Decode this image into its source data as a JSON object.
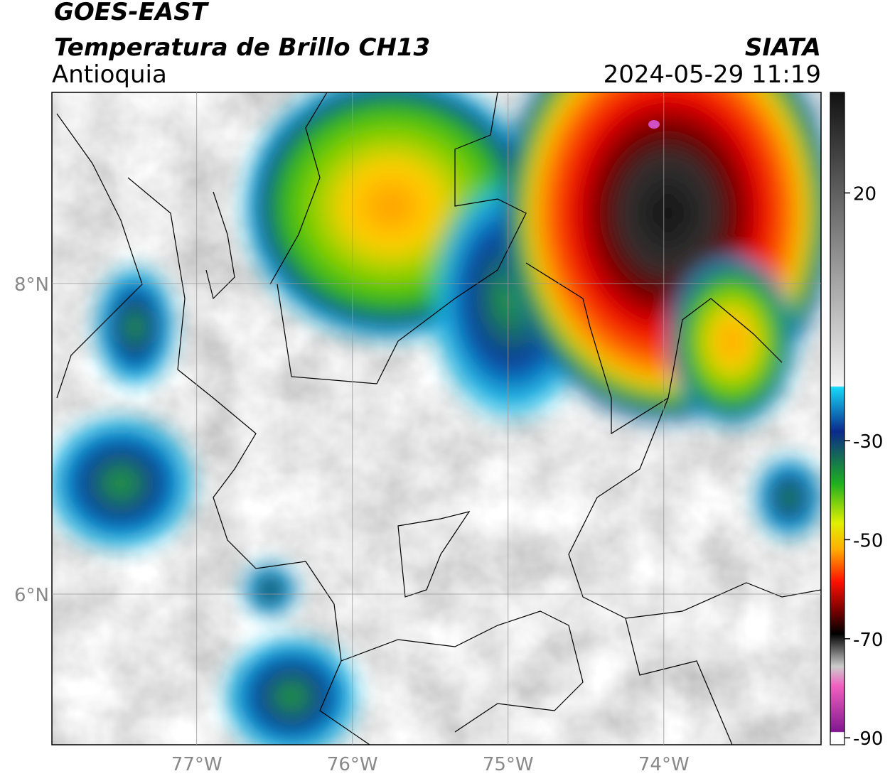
{
  "header": {
    "satellite": "GOES-EAST",
    "product": "Temperatura de Brillo CH13",
    "region": "Antioquia",
    "source": "SIATA",
    "datetime": "2024-05-29 11:19"
  },
  "map": {
    "xlim": [
      -77.93,
      -72.99
    ],
    "ylim": [
      5.03,
      9.23
    ],
    "xticks": [
      {
        "value": -77,
        "label": "77°W"
      },
      {
        "value": -76,
        "label": "76°W"
      },
      {
        "value": -75,
        "label": "75°W"
      },
      {
        "value": -74,
        "label": "74°W"
      }
    ],
    "yticks": [
      {
        "value": 8,
        "label": "8°N"
      },
      {
        "value": 6,
        "label": "6°N"
      }
    ],
    "grid": true
  },
  "colorbar": {
    "range": [
      -91.4,
      40.3
    ],
    "ticks": [
      20,
      -30,
      -50,
      -70,
      -90
    ]
  }
}
